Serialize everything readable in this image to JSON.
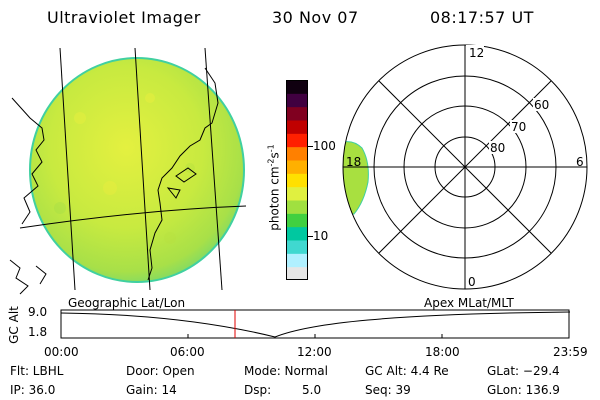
{
  "header": {
    "instrument": "Ultraviolet Imager",
    "date": "30 Nov 07",
    "time": "08:17:57 UT"
  },
  "colorbar": {
    "unit_label": "photon cm",
    "unit_sup1": "-2",
    "unit_mid": "s",
    "unit_sup2": "-1",
    "tick_100": "100",
    "tick_10": "10",
    "colors": [
      "#e6e6e6",
      "#b0f0ff",
      "#40d8d0",
      "#00c8a0",
      "#40d040",
      "#a0e040",
      "#e0f040",
      "#ffe000",
      "#ffb000",
      "#ff8000",
      "#ff2000",
      "#c00000",
      "#800020",
      "#400040",
      "#100010"
    ]
  },
  "polar": {
    "mlt_12": "12",
    "mlt_18": "18",
    "mlt_6": "6",
    "mlt_0": "0",
    "lat_60": "60",
    "lat_70": "70",
    "lat_80": "80"
  },
  "altitude_plot": {
    "title_left": "Geographic Lat/Lon",
    "title_right": "Apex MLat/MLT",
    "ylabel": "GC Alt",
    "ytick_top": "9.0",
    "ytick_bottom": "1.8",
    "xticks": [
      "00:00",
      "06:00",
      "12:00",
      "18:00",
      "23:59"
    ],
    "marker_color": "#e00000"
  },
  "info": {
    "flt": "Flt: LBHL",
    "door": "Door: Open",
    "mode": "Mode: Normal",
    "gcalt": "GC Alt: 4.4 Re",
    "glat": "GLat: −29.4",
    "ip": "IP: 36.0",
    "gain": "Gain: 14",
    "dsp_label": "Dsp:",
    "dsp_value": "5.0",
    "seq": "Seq: 39",
    "glon": "GLon: 136.9"
  }
}
